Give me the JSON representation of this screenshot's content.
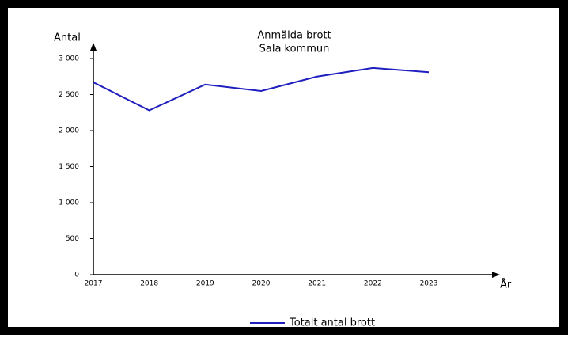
{
  "chart_data": {
    "type": "line",
    "title": "Anmälda brott",
    "subtitle": "Sala kommun",
    "y_label": "Antal",
    "x_label": "År",
    "categories": [
      "2017",
      "2018",
      "2019",
      "2020",
      "2021",
      "2022",
      "2023"
    ],
    "series": [
      {
        "name": "Totalt antal brott",
        "color": "#1f1fbf",
        "values": [
          2670,
          2280,
          2640,
          2550,
          2750,
          2870,
          2810
        ]
      }
    ],
    "ylim": [
      0,
      3000
    ],
    "yticks": [
      0,
      500,
      {
        "value": 1000,
        "label": "1 000"
      },
      {
        "value": 1500,
        "label": "1 500"
      },
      {
        "value": 2000,
        "label": "2 000"
      },
      {
        "value": 2500,
        "label": "2 500"
      },
      {
        "value": 3000,
        "label": "3 000"
      }
    ],
    "legend": "bottom"
  }
}
